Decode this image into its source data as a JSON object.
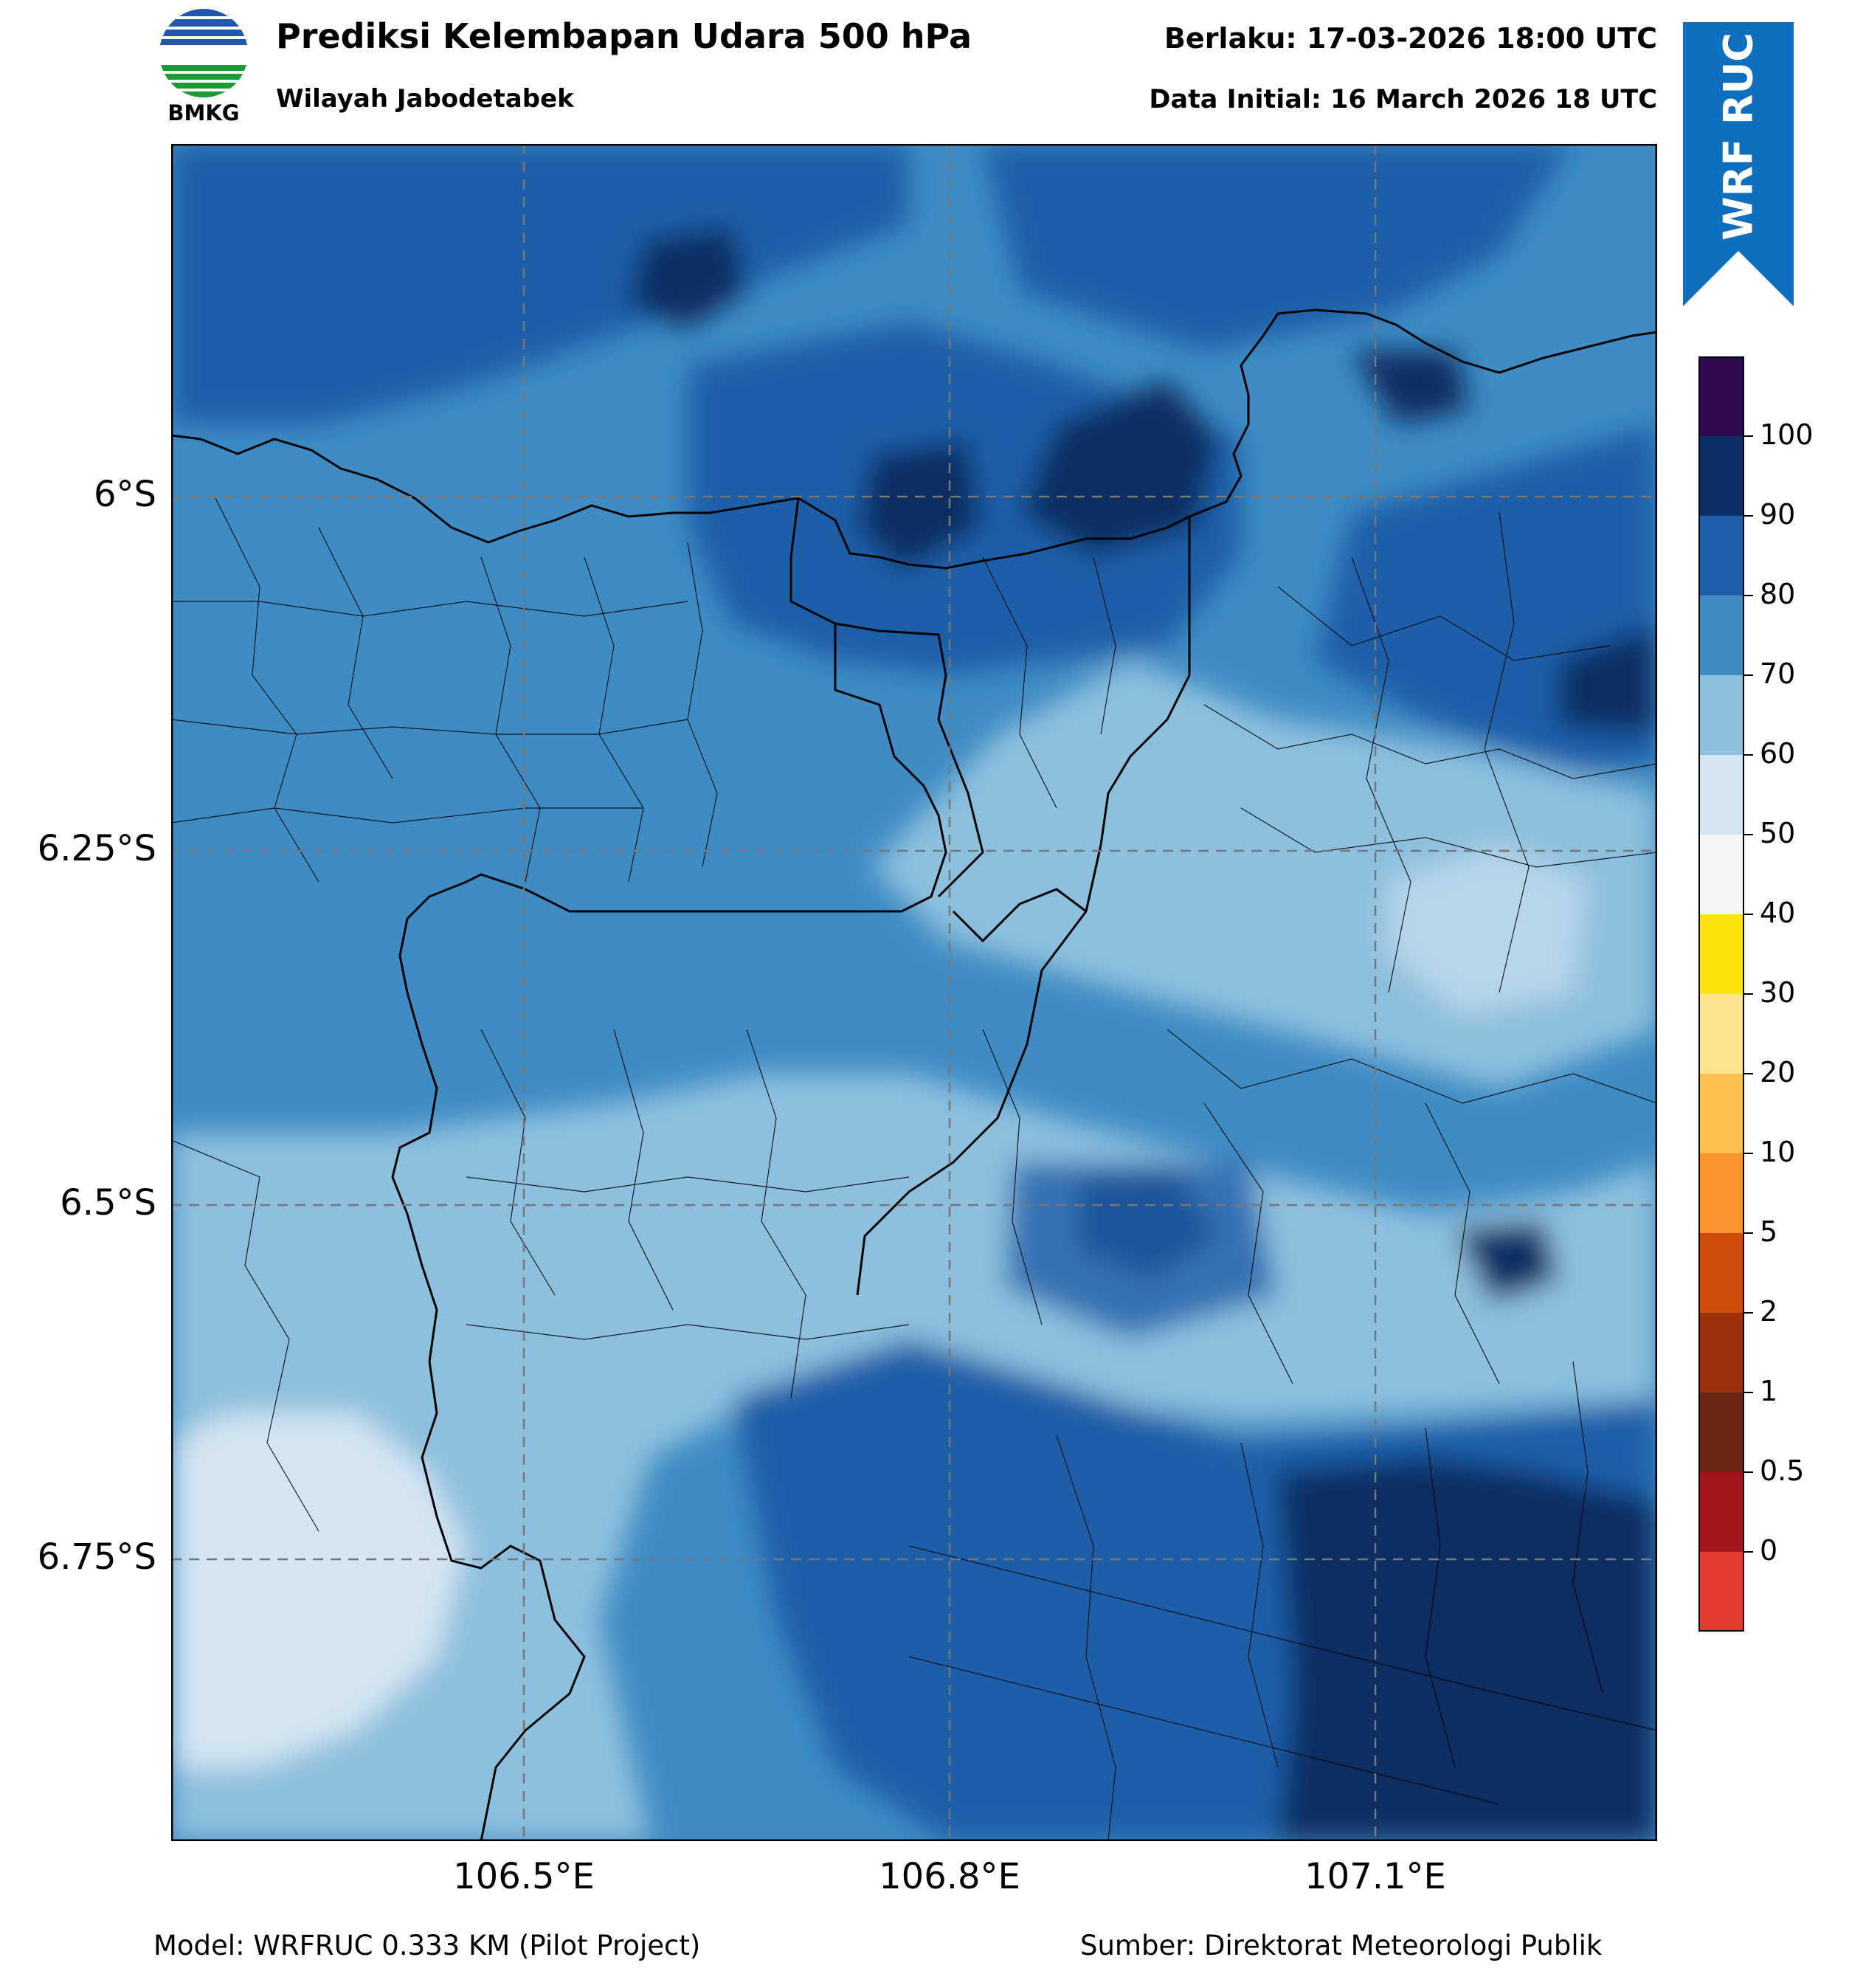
{
  "header": {
    "title": "Prediksi Kelembapan Udara 500 hPa",
    "subtitle": "Wilayah Jabodetabek",
    "valid": "Berlaku: 17-03-2026 18:00 UTC",
    "initial": "Data Initial: 16 March 2026 18 UTC"
  },
  "logo": {
    "text": "BMKG",
    "icon": "bmkg-logo"
  },
  "ribbon": {
    "text": "WRF RUC",
    "color": "#0d6fbe"
  },
  "map": {
    "lat_ticks": [
      "6°S",
      "6.25°S",
      "6.5°S",
      "6.75°S"
    ],
    "lon_ticks": [
      "106.5°E",
      "106.8°E",
      "107.1°E"
    ]
  },
  "colorbar": {
    "labels": [
      "100",
      "90",
      "80",
      "70",
      "60",
      "50",
      "40",
      "30",
      "20",
      "10",
      "5",
      "2",
      "1",
      "0.5",
      "0"
    ],
    "colors_top_to_bottom": [
      "#2d0a4e",
      "#0b2f64",
      "#1f5ea8",
      "#3f8cc4",
      "#8dc0de",
      "#d4e5f1",
      "#f5f5f5",
      "#fbe20a",
      "#fde28f",
      "#fdbf4e",
      "#fc9530",
      "#d04e0a",
      "#9d310b",
      "#6b2510",
      "#a4141b",
      "#e23b2f"
    ]
  },
  "footer": {
    "model": "Model: WRFRUC 0.333 KM (Pilot Project)",
    "source": "Sumber: Direktorat Meteorologi Publik"
  }
}
